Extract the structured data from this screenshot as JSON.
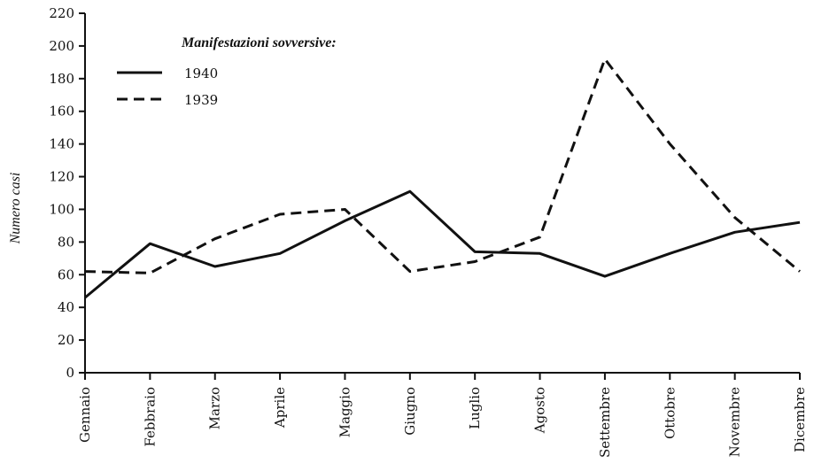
{
  "chart_data": {
    "type": "line",
    "ylabel": "Numero casi",
    "ylim": [
      0,
      220
    ],
    "yticks": [
      "0",
      "20",
      "40",
      "60",
      "80",
      "100",
      "120",
      "140",
      "160",
      "180",
      "200",
      "220"
    ],
    "categories": [
      "Gennaio",
      "Febbraio",
      "Marzo",
      "Aprile",
      "Maggio",
      "Giugno",
      "Luglio",
      "Agosto",
      "Settembre",
      "Ottobre",
      "Novembre",
      "Dicembre"
    ],
    "legend_title": "Manifestazioni sovversive:",
    "legend_position": "top-left",
    "grid": false,
    "series": [
      {
        "name": "1940",
        "style": "solid",
        "values": [
          46,
          79,
          65,
          73,
          93,
          111,
          74,
          73,
          59,
          73,
          86,
          92
        ]
      },
      {
        "name": "1939",
        "style": "dashed",
        "values": [
          62,
          61,
          82,
          97,
          100,
          62,
          68,
          83,
          192,
          140,
          95,
          62
        ]
      }
    ]
  }
}
